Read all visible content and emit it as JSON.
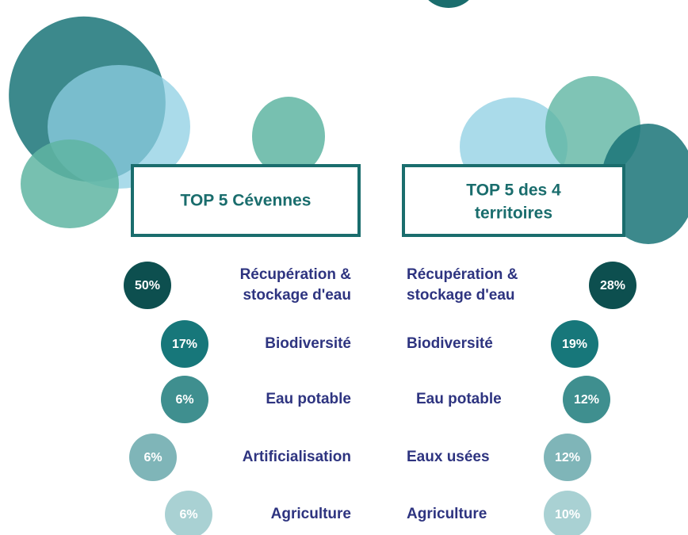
{
  "left": {
    "title": "TOP 5 Cévennes",
    "items": [
      {
        "value": "50%",
        "label": [
          "Récupération &",
          "stockage d'eau"
        ]
      },
      {
        "value": "17%",
        "label": [
          "Biodiversité"
        ]
      },
      {
        "value": "6%",
        "label": [
          "Eau potable"
        ]
      },
      {
        "value": "6%",
        "label": [
          "Artificialisation"
        ]
      },
      {
        "value": "6%",
        "label": [
          "Agriculture"
        ]
      }
    ]
  },
  "right": {
    "title": [
      "TOP 5 des 4",
      "territoires"
    ],
    "items": [
      {
        "value": "28%",
        "label": [
          "Récupération &",
          "stockage d'eau"
        ]
      },
      {
        "value": "19%",
        "label": [
          "Biodiversité"
        ]
      },
      {
        "value": "12%",
        "label": [
          "Eau potable"
        ]
      },
      {
        "value": "12%",
        "label": [
          "Eaux usées"
        ]
      },
      {
        "value": "10%",
        "label": [
          "Agriculture"
        ]
      }
    ]
  }
}
